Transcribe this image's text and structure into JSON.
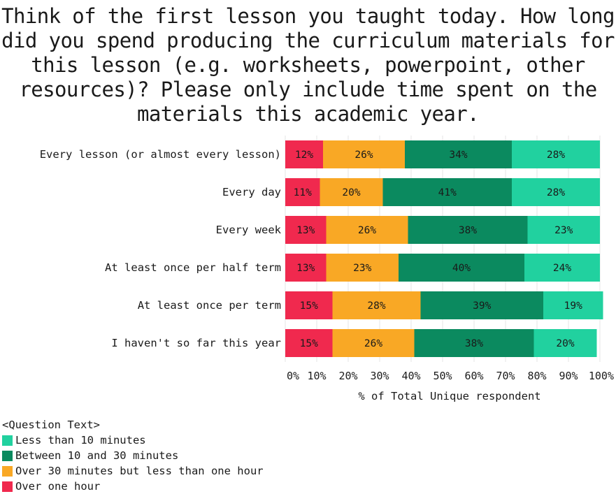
{
  "chart_data": {
    "type": "bar",
    "orientation": "horizontal",
    "stacked": true,
    "title": "Think of the first lesson you taught today. How long did you spend producing the curriculum materials for this lesson (e.g. worksheets, powerpoint, other resources)? Please only include time spent on the materials this academic year.",
    "xlabel": "% of Total Unique respondent",
    "ylabel": "",
    "xlim": [
      0,
      100
    ],
    "xticks": [
      "0%",
      "10%",
      "20%",
      "30%",
      "40%",
      "50%",
      "60%",
      "70%",
      "80%",
      "90%",
      "100%"
    ],
    "grid": true,
    "legend_title": "<Question Text>",
    "legend_position": "bottom-left",
    "categories": [
      "Every lesson (or almost every lesson)",
      "Every day",
      "Every week",
      "At least once per half term",
      "At least once per term",
      "I haven't so far this year"
    ],
    "series": [
      {
        "name": "Over one hour",
        "color": "#f0294e",
        "values": [
          12,
          11,
          13,
          13,
          15,
          15
        ]
      },
      {
        "name": "Over 30 minutes but less than one hour",
        "color": "#f9a825",
        "values": [
          26,
          20,
          26,
          23,
          28,
          26
        ]
      },
      {
        "name": "Between 10 and 30 minutes",
        "color": "#0b8a5f",
        "values": [
          34,
          41,
          38,
          40,
          39,
          38
        ]
      },
      {
        "name": "Less than 10 minutes",
        "color": "#21d19f",
        "values": [
          28,
          28,
          23,
          24,
          19,
          20
        ]
      }
    ],
    "legend_order": [
      3,
      2,
      1,
      0
    ]
  }
}
